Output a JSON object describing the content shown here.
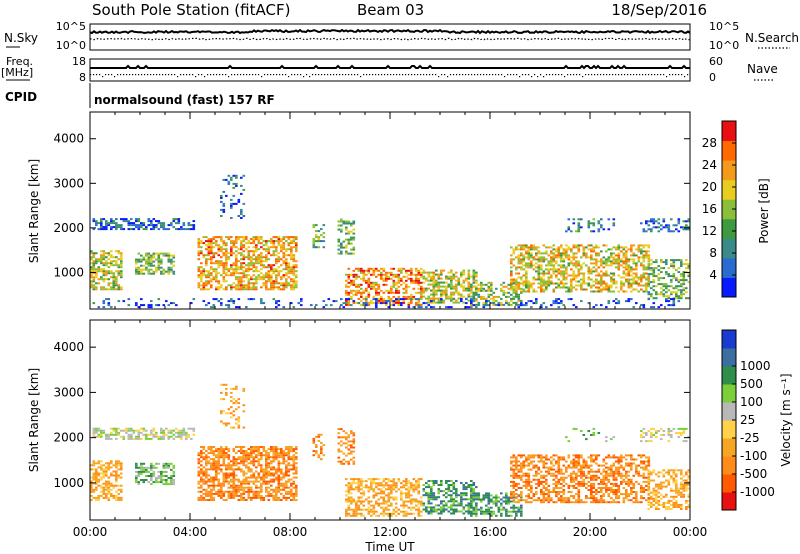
{
  "header": {
    "station": "South Pole Station (fitACF)",
    "beam": "Beam 03",
    "date": "18/Sep/2016"
  },
  "top_panels": {
    "nsky": {
      "left_label": "N.Sky",
      "right_label": "N.Search",
      "left_ticks": [
        "10^5",
        "10^0"
      ],
      "right_ticks": [
        "10^5",
        "10^0"
      ]
    },
    "freq": {
      "left_label_line1": "Freq.",
      "left_label_line2": "[MHz]",
      "right_label": "Nave",
      "left_ticks": [
        "18",
        "8"
      ],
      "right_ticks": [
        "60",
        "0"
      ]
    },
    "cpid": {
      "label": "CPID",
      "text": "normalsound (fast) 157 RF"
    }
  },
  "chart_data": [
    {
      "type": "heatmap",
      "title": "",
      "xlabel": "",
      "ylabel": "Slant Range [km]",
      "xlim_hours": [
        0,
        24
      ],
      "ylim_km": [
        180,
        4600
      ],
      "yticks": [
        1000,
        2000,
        3000,
        4000
      ],
      "colorbar": {
        "label": "Power [dB]",
        "range": [
          0,
          32
        ],
        "ticks": [
          4,
          8,
          12,
          16,
          20,
          24,
          28
        ],
        "colors": [
          "#0a1aff",
          "#2a6bd0",
          "#3a8a8a",
          "#3d9a40",
          "#8bbf3a",
          "#e8cc20",
          "#f39a1a",
          "#ff6a00",
          "#e81010"
        ]
      },
      "regions": [
        {
          "t": [
            0.1,
            4.2
          ],
          "r": [
            1950,
            2200
          ],
          "v": 6,
          "d": 0.55
        },
        {
          "t": [
            0.0,
            1.3
          ],
          "r": [
            600,
            1500
          ],
          "v": 18,
          "d": 0.6
        },
        {
          "t": [
            1.8,
            3.4
          ],
          "r": [
            950,
            1450
          ],
          "v": 14,
          "d": 0.6
        },
        {
          "t": [
            4.3,
            8.3
          ],
          "r": [
            600,
            1800
          ],
          "v": 22,
          "d": 0.6
        },
        {
          "t": [
            5.2,
            6.2
          ],
          "r": [
            2200,
            3200
          ],
          "v": 6,
          "d": 0.2
        },
        {
          "t": [
            8.9,
            9.4
          ],
          "r": [
            1500,
            2100
          ],
          "v": 12,
          "d": 0.35
        },
        {
          "t": [
            9.9,
            10.6
          ],
          "r": [
            1400,
            2200
          ],
          "v": 14,
          "d": 0.4
        },
        {
          "t": [
            10.2,
            13.3
          ],
          "r": [
            250,
            1100
          ],
          "v": 24,
          "d": 0.55
        },
        {
          "t": [
            13.3,
            15.5
          ],
          "r": [
            300,
            1050
          ],
          "v": 18,
          "d": 0.55
        },
        {
          "t": [
            15.2,
            17.3
          ],
          "r": [
            250,
            800
          ],
          "v": 16,
          "d": 0.5
        },
        {
          "t": [
            16.8,
            22.4
          ],
          "r": [
            550,
            1650
          ],
          "v": 20,
          "d": 0.55
        },
        {
          "t": [
            19.0,
            21.0
          ],
          "r": [
            1900,
            2200
          ],
          "v": 8,
          "d": 0.2
        },
        {
          "t": [
            22.0,
            24.0
          ],
          "r": [
            1900,
            2200
          ],
          "v": 6,
          "d": 0.4
        },
        {
          "t": [
            22.3,
            24.0
          ],
          "r": [
            400,
            1300
          ],
          "v": 14,
          "d": 0.5
        },
        {
          "t": [
            0.0,
            24.0
          ],
          "r": [
            200,
            420
          ],
          "v": 4,
          "d": 0.2
        }
      ]
    },
    {
      "type": "heatmap",
      "title": "",
      "xlabel": "Time UT",
      "ylabel": "Slant Range [km]",
      "xlim_hours": [
        0,
        24
      ],
      "ylim_km": [
        180,
        4600
      ],
      "yticks": [
        1000,
        2000,
        3000,
        4000
      ],
      "xticks": [
        "00:00",
        "04:00",
        "08:00",
        "12:00",
        "16:00",
        "20:00",
        "00:00"
      ],
      "colorbar": {
        "label": "Velocity [m s⁻¹]",
        "ticks": [
          "-1000",
          "-500",
          "-100",
          "-25",
          "25",
          "100",
          "500",
          "1000"
        ],
        "colors": [
          "#e81010",
          "#ff5a00",
          "#ff8c1a",
          "#f5a623",
          "#ffd24a",
          "#b8b8b8",
          "#7ccf3a",
          "#2f8f4a",
          "#3a6fa0",
          "#1a3bd0"
        ]
      },
      "regions": [
        {
          "t": [
            0.1,
            4.2
          ],
          "r": [
            1950,
            2200
          ],
          "c": 5,
          "d": 0.55
        },
        {
          "t": [
            0.0,
            1.3
          ],
          "r": [
            600,
            1500
          ],
          "c": 3,
          "d": 0.6
        },
        {
          "t": [
            1.8,
            3.4
          ],
          "r": [
            950,
            1450
          ],
          "c": 6,
          "d": 0.6
        },
        {
          "t": [
            4.3,
            8.3
          ],
          "r": [
            600,
            1800
          ],
          "c": 2,
          "d": 0.65
        },
        {
          "t": [
            5.2,
            6.2
          ],
          "r": [
            2200,
            3200
          ],
          "c": 3,
          "d": 0.2
        },
        {
          "t": [
            8.9,
            9.4
          ],
          "r": [
            1500,
            2100
          ],
          "c": 2,
          "d": 0.35
        },
        {
          "t": [
            9.9,
            10.6
          ],
          "r": [
            1400,
            2200
          ],
          "c": 2,
          "d": 0.4
        },
        {
          "t": [
            10.2,
            13.3
          ],
          "r": [
            250,
            1100
          ],
          "c": 3,
          "d": 0.55
        },
        {
          "t": [
            13.3,
            15.5
          ],
          "r": [
            300,
            1050
          ],
          "c": 7,
          "d": 0.5
        },
        {
          "t": [
            15.2,
            17.3
          ],
          "r": [
            250,
            800
          ],
          "c": 7,
          "d": 0.5
        },
        {
          "t": [
            16.8,
            22.4
          ],
          "r": [
            550,
            1650
          ],
          "c": 2,
          "d": 0.55
        },
        {
          "t": [
            19.0,
            21.0
          ],
          "r": [
            1900,
            2200
          ],
          "c": 6,
          "d": 0.2
        },
        {
          "t": [
            22.0,
            24.0
          ],
          "r": [
            1900,
            2200
          ],
          "c": 5,
          "d": 0.4
        },
        {
          "t": [
            22.3,
            24.0
          ],
          "r": [
            400,
            1300
          ],
          "c": 3,
          "d": 0.5
        }
      ]
    }
  ]
}
